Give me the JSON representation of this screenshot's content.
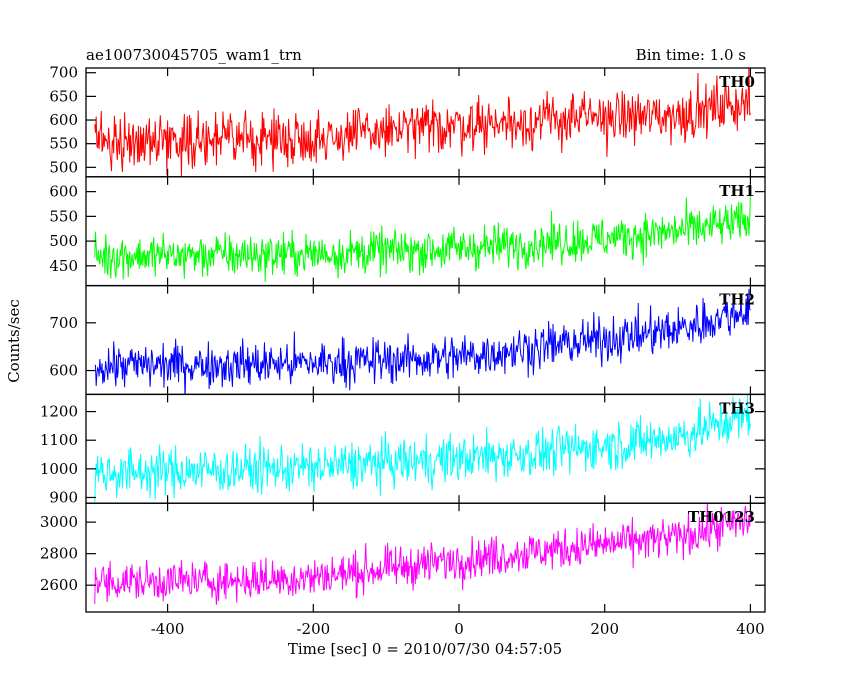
{
  "header": {
    "title": "ae100730045705_wam1_trn",
    "bin_time": "Bin time: 1.0 s"
  },
  "chart_data": {
    "type": "line",
    "title": "ae100730045705_wam1_trn",
    "subtitle": "Bin time: 1.0 s",
    "xlabel": "Time [sec] 0 = 2010/07/30 04:57:05",
    "ylabel": "Counts/sec",
    "xlim": [
      -512,
      420
    ],
    "x_ticks": [
      -400,
      -200,
      0,
      200,
      400
    ],
    "x_range": [
      -500,
      400
    ],
    "x_step": 1,
    "grid": false,
    "series": [
      {
        "name": "TH0",
        "color": "#ff0000",
        "ylim": [
          480,
          710
        ],
        "y_ticks": [
          500,
          550,
          600,
          650,
          700
        ],
        "trend": [
          [
            -500,
            556
          ],
          [
            -200,
            562
          ],
          [
            0,
            590
          ],
          [
            200,
            605
          ],
          [
            300,
            610
          ],
          [
            400,
            640
          ]
        ],
        "noise": 28
      },
      {
        "name": "TH1",
        "color": "#00ff00",
        "ylim": [
          410,
          630
        ],
        "y_ticks": [
          450,
          500,
          550,
          600
        ],
        "trend": [
          [
            -500,
            470
          ],
          [
            -300,
            472
          ],
          [
            -200,
            474
          ],
          [
            0,
            485
          ],
          [
            200,
            505
          ],
          [
            300,
            520
          ],
          [
            400,
            540
          ]
        ],
        "noise": 22
      },
      {
        "name": "TH2",
        "color": "#0000ff",
        "ylim": [
          550,
          778
        ],
        "y_ticks": [
          600,
          700
        ],
        "trend": [
          [
            -500,
            610
          ],
          [
            -200,
            615
          ],
          [
            0,
            628
          ],
          [
            100,
            648
          ],
          [
            200,
            665
          ],
          [
            300,
            685
          ],
          [
            400,
            730
          ]
        ],
        "noise": 24
      },
      {
        "name": "TH3",
        "color": "#00ffff",
        "ylim": [
          880,
          1260
        ],
        "y_ticks": [
          900,
          1000,
          1100,
          1200
        ],
        "trend": [
          [
            -500,
            985
          ],
          [
            -200,
            1005
          ],
          [
            0,
            1035
          ],
          [
            100,
            1055
          ],
          [
            200,
            1080
          ],
          [
            300,
            1110
          ],
          [
            400,
            1190
          ]
        ],
        "noise": 42
      },
      {
        "name": "TH0123",
        "color": "#ff00ff",
        "ylim": [
          2430,
          3120
        ],
        "y_ticks": [
          2600,
          2800,
          3000
        ],
        "trend": [
          [
            -500,
            2620
          ],
          [
            -300,
            2630
          ],
          [
            -200,
            2650
          ],
          [
            0,
            2760
          ],
          [
            100,
            2810
          ],
          [
            200,
            2860
          ],
          [
            300,
            2900
          ],
          [
            400,
            3020
          ]
        ],
        "noise": 65
      }
    ]
  }
}
